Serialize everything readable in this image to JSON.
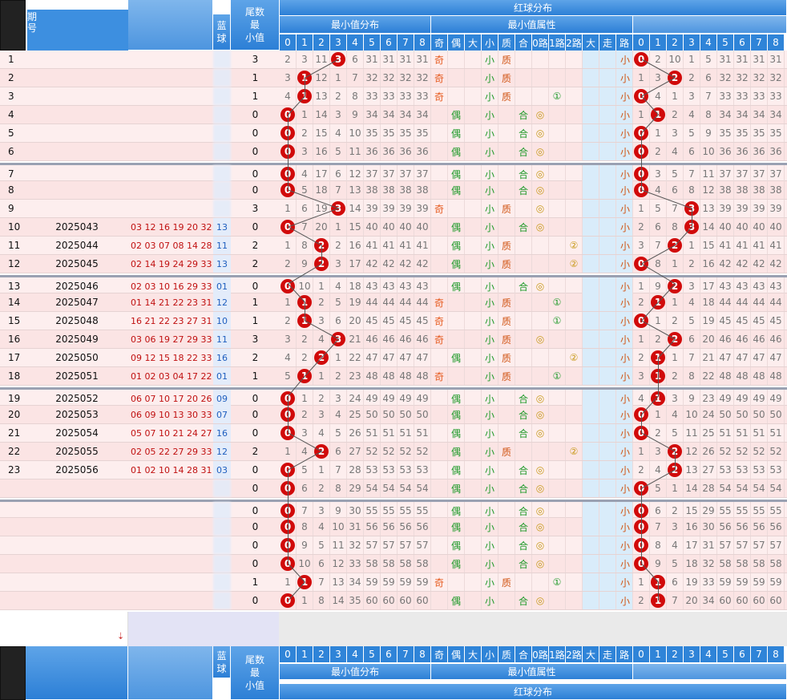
{
  "header": {
    "period_label": "期\n号",
    "blue_ball": "蓝\n球",
    "tail_min": "尾数\n最\n小值",
    "red_dist": "红球分布",
    "min_dist": "最小值分布",
    "min_attr": "最小值属性",
    "digits": [
      "0",
      "1",
      "2",
      "3",
      "4",
      "5",
      "6",
      "7",
      "8"
    ],
    "attrs": [
      "奇",
      "偶",
      "大",
      "小",
      "质",
      "合",
      "0路",
      "1路",
      "2路",
      "大",
      "走",
      "路"
    ]
  },
  "rows": [
    {
      "idx": "1",
      "period": "",
      "nums": "",
      "blue": "",
      "tail": "3",
      "min": [
        "2",
        "3",
        "11",
        "3",
        "6",
        "31",
        "31",
        "31",
        "31"
      ],
      "attr": {
        "odd": "奇",
        "even": "",
        "small": "小",
        "pc": "质",
        "r": ""
      },
      "r2": [
        "",
        "",
        "",
        "",
        "",
        "",
        "",
        "",
        ""
      ],
      "right": [
        "0",
        "2",
        "10",
        "1",
        "5",
        "31",
        "31",
        "31",
        "31"
      ]
    },
    {
      "idx": "2",
      "period": "",
      "nums": "",
      "blue": "",
      "tail": "1",
      "min": [
        "3",
        "1",
        "12",
        "1",
        "7",
        "32",
        "32",
        "32",
        "32"
      ],
      "attr": {
        "odd": "奇",
        "even": "",
        "small": "小",
        "pc": "质",
        "r": ""
      },
      "right": [
        "1",
        "3",
        "2",
        "2",
        "6",
        "32",
        "32",
        "32",
        "32"
      ]
    },
    {
      "idx": "3",
      "period": "",
      "nums": "",
      "blue": "",
      "tail": "1",
      "min": [
        "4",
        "1",
        "13",
        "2",
        "8",
        "33",
        "33",
        "33",
        "33"
      ],
      "attr": {
        "odd": "奇",
        "even": "",
        "small": "小",
        "pc": "质",
        "r": "①"
      },
      "right": [
        "0",
        "4",
        "1",
        "3",
        "7",
        "33",
        "33",
        "33",
        "33"
      ]
    },
    {
      "idx": "4",
      "period": "",
      "nums": "",
      "blue": "",
      "tail": "0",
      "min": [
        "0",
        "1",
        "14",
        "3",
        "9",
        "34",
        "34",
        "34",
        "34"
      ],
      "attr": {
        "odd": "",
        "even": "偶",
        "small": "小",
        "pc": "合",
        "r": "◎"
      },
      "right": [
        "1",
        "1",
        "2",
        "4",
        "8",
        "34",
        "34",
        "34",
        "34"
      ]
    },
    {
      "idx": "5",
      "period": "",
      "nums": "",
      "blue": "",
      "tail": "0",
      "min": [
        "0",
        "2",
        "15",
        "4",
        "10",
        "35",
        "35",
        "35",
        "35"
      ],
      "attr": {
        "odd": "",
        "even": "偶",
        "small": "小",
        "pc": "合",
        "r": "◎"
      },
      "right": [
        "0",
        "1",
        "3",
        "5",
        "9",
        "35",
        "35",
        "35",
        "35"
      ]
    },
    {
      "idx": "6",
      "period": "",
      "nums": "",
      "blue": "",
      "tail": "0",
      "min": [
        "0",
        "3",
        "16",
        "5",
        "11",
        "36",
        "36",
        "36",
        "36"
      ],
      "attr": {
        "odd": "",
        "even": "偶",
        "small": "小",
        "pc": "合",
        "r": "◎"
      },
      "right": [
        "0",
        "2",
        "4",
        "6",
        "10",
        "36",
        "36",
        "36",
        "36"
      ]
    },
    {
      "idx": "7",
      "period": "",
      "nums": "",
      "blue": "",
      "tail": "0",
      "min": [
        "0",
        "4",
        "17",
        "6",
        "12",
        "37",
        "37",
        "37",
        "37"
      ],
      "attr": {
        "odd": "",
        "even": "偶",
        "small": "小",
        "pc": "合",
        "r": "◎"
      },
      "right": [
        "0",
        "3",
        "5",
        "7",
        "11",
        "37",
        "37",
        "37",
        "37"
      ]
    },
    {
      "idx": "8",
      "period": "",
      "nums": "",
      "blue": "",
      "tail": "0",
      "min": [
        "0",
        "5",
        "18",
        "7",
        "13",
        "38",
        "38",
        "38",
        "38"
      ],
      "attr": {
        "odd": "",
        "even": "偶",
        "small": "小",
        "pc": "合",
        "r": "◎"
      },
      "right": [
        "0",
        "4",
        "6",
        "8",
        "12",
        "38",
        "38",
        "38",
        "38"
      ]
    },
    {
      "idx": "9",
      "period": "",
      "nums": "",
      "blue": "",
      "tail": "3",
      "min": [
        "1",
        "6",
        "19",
        "3",
        "14",
        "39",
        "39",
        "39",
        "39"
      ],
      "attr": {
        "odd": "奇",
        "even": "",
        "small": "小",
        "pc": "质",
        "r": "◎"
      },
      "right": [
        "1",
        "5",
        "7",
        "3",
        "13",
        "39",
        "39",
        "39",
        "39"
      ]
    },
    {
      "idx": "10",
      "period": "2025043",
      "nums": "03 12 16 19 20 32",
      "blue": "13",
      "tail": "0",
      "min": [
        "0",
        "7",
        "20",
        "1",
        "15",
        "40",
        "40",
        "40",
        "40"
      ],
      "attr": {
        "odd": "",
        "even": "偶",
        "small": "小",
        "pc": "合",
        "r": "◎"
      },
      "right": [
        "2",
        "6",
        "8",
        "3",
        "14",
        "40",
        "40",
        "40",
        "40"
      ]
    },
    {
      "idx": "11",
      "period": "2025044",
      "nums": "02 03 07 08 14 28",
      "blue": "11",
      "tail": "2",
      "min": [
        "1",
        "8",
        "2",
        "2",
        "16",
        "41",
        "41",
        "41",
        "41"
      ],
      "attr": {
        "odd": "",
        "even": "偶",
        "small": "小",
        "pc": "质",
        "r": "②"
      },
      "right": [
        "3",
        "7",
        "2",
        "1",
        "15",
        "41",
        "41",
        "41",
        "41"
      ]
    },
    {
      "idx": "12",
      "period": "2025045",
      "nums": "02 14 19 24 29 33",
      "blue": "13",
      "tail": "2",
      "min": [
        "2",
        "9",
        "2",
        "3",
        "17",
        "42",
        "42",
        "42",
        "42"
      ],
      "attr": {
        "odd": "",
        "even": "偶",
        "small": "小",
        "pc": "质",
        "r": "②"
      },
      "right": [
        "0",
        "8",
        "1",
        "2",
        "16",
        "42",
        "42",
        "42",
        "42"
      ]
    },
    {
      "idx": "13",
      "period": "2025046",
      "nums": "02 03 10 16 29 33",
      "blue": "01",
      "tail": "0",
      "min": [
        "0",
        "10",
        "1",
        "4",
        "18",
        "43",
        "43",
        "43",
        "43"
      ],
      "attr": {
        "odd": "",
        "even": "偶",
        "small": "小",
        "pc": "合",
        "r": "◎"
      },
      "right": [
        "1",
        "9",
        "2",
        "3",
        "17",
        "43",
        "43",
        "43",
        "43"
      ]
    },
    {
      "idx": "14",
      "period": "2025047",
      "nums": "01 14 21 22 23 31",
      "blue": "12",
      "tail": "1",
      "min": [
        "1",
        "1",
        "2",
        "5",
        "19",
        "44",
        "44",
        "44",
        "44"
      ],
      "attr": {
        "odd": "奇",
        "even": "",
        "small": "小",
        "pc": "质",
        "r": "①"
      },
      "right": [
        "2",
        "1",
        "1",
        "4",
        "18",
        "44",
        "44",
        "44",
        "44"
      ]
    },
    {
      "idx": "15",
      "period": "2025048",
      "nums": "16 21 22 23 27 31",
      "blue": "10",
      "tail": "1",
      "min": [
        "2",
        "1",
        "3",
        "6",
        "20",
        "45",
        "45",
        "45",
        "45"
      ],
      "attr": {
        "odd": "奇",
        "even": "",
        "small": "小",
        "pc": "质",
        "r": "①"
      },
      "right": [
        "0",
        "1",
        "2",
        "5",
        "19",
        "45",
        "45",
        "45",
        "45"
      ]
    },
    {
      "idx": "16",
      "period": "2025049",
      "nums": "03 06 19 27 29 33",
      "blue": "11",
      "tail": "3",
      "min": [
        "3",
        "2",
        "4",
        "3",
        "21",
        "46",
        "46",
        "46",
        "46"
      ],
      "attr": {
        "odd": "奇",
        "even": "",
        "small": "小",
        "pc": "质",
        "r": "◎"
      },
      "right": [
        "1",
        "2",
        "2",
        "6",
        "20",
        "46",
        "46",
        "46",
        "46"
      ]
    },
    {
      "idx": "17",
      "period": "2025050",
      "nums": "09 12 15 18 22 33",
      "blue": "16",
      "tail": "2",
      "min": [
        "4",
        "2",
        "2",
        "1",
        "22",
        "47",
        "47",
        "47",
        "47"
      ],
      "attr": {
        "odd": "",
        "even": "偶",
        "small": "小",
        "pc": "质",
        "r": "②"
      },
      "right": [
        "2",
        "1",
        "1",
        "7",
        "21",
        "47",
        "47",
        "47",
        "47"
      ]
    },
    {
      "idx": "18",
      "period": "2025051",
      "nums": "01 02 03 04 17 22",
      "blue": "01",
      "tail": "1",
      "min": [
        "5",
        "1",
        "1",
        "2",
        "23",
        "48",
        "48",
        "48",
        "48"
      ],
      "attr": {
        "odd": "奇",
        "even": "",
        "small": "小",
        "pc": "质",
        "r": "①"
      },
      "right": [
        "3",
        "1",
        "2",
        "8",
        "22",
        "48",
        "48",
        "48",
        "48"
      ]
    },
    {
      "idx": "19",
      "period": "2025052",
      "nums": "06 07 10 17 20 26",
      "blue": "09",
      "tail": "0",
      "min": [
        "0",
        "1",
        "2",
        "3",
        "24",
        "49",
        "49",
        "49",
        "49"
      ],
      "attr": {
        "odd": "",
        "even": "偶",
        "small": "小",
        "pc": "合",
        "r": "◎"
      },
      "right": [
        "4",
        "1",
        "3",
        "9",
        "23",
        "49",
        "49",
        "49",
        "49"
      ]
    },
    {
      "idx": "20",
      "period": "2025053",
      "nums": "06 09 10 13 30 33",
      "blue": "07",
      "tail": "0",
      "min": [
        "0",
        "2",
        "3",
        "4",
        "25",
        "50",
        "50",
        "50",
        "50"
      ],
      "attr": {
        "odd": "",
        "even": "偶",
        "small": "小",
        "pc": "合",
        "r": "◎"
      },
      "right": [
        "0",
        "1",
        "4",
        "10",
        "24",
        "50",
        "50",
        "50",
        "50"
      ]
    },
    {
      "idx": "21",
      "period": "2025054",
      "nums": "05 07 10 21 24 27",
      "blue": "16",
      "tail": "0",
      "min": [
        "0",
        "3",
        "4",
        "5",
        "26",
        "51",
        "51",
        "51",
        "51"
      ],
      "attr": {
        "odd": "",
        "even": "偶",
        "small": "小",
        "pc": "合",
        "r": "◎"
      },
      "right": [
        "0",
        "2",
        "5",
        "11",
        "25",
        "51",
        "51",
        "51",
        "51"
      ]
    },
    {
      "idx": "22",
      "period": "2025055",
      "nums": "02 05 22 27 29 33",
      "blue": "12",
      "tail": "2",
      "min": [
        "1",
        "4",
        "2",
        "6",
        "27",
        "52",
        "52",
        "52",
        "52"
      ],
      "attr": {
        "odd": "",
        "even": "偶",
        "small": "小",
        "pc": "质",
        "r": "②"
      },
      "right": [
        "1",
        "3",
        "2",
        "12",
        "26",
        "52",
        "52",
        "52",
        "52"
      ]
    },
    {
      "idx": "23",
      "period": "2025056",
      "nums": "01 02 10 14 28 31",
      "blue": "03",
      "tail": "0",
      "min": [
        "0",
        "5",
        "1",
        "7",
        "28",
        "53",
        "53",
        "53",
        "53"
      ],
      "attr": {
        "odd": "",
        "even": "偶",
        "small": "小",
        "pc": "合",
        "r": "◎"
      },
      "right": [
        "2",
        "4",
        "2",
        "13",
        "27",
        "53",
        "53",
        "53",
        "53"
      ]
    },
    {
      "idx": "",
      "period": "",
      "nums": "",
      "blue": "",
      "tail": "0",
      "min": [
        "0",
        "6",
        "2",
        "8",
        "29",
        "54",
        "54",
        "54",
        "54"
      ],
      "attr": {
        "odd": "",
        "even": "偶",
        "small": "小",
        "pc": "合",
        "r": "◎"
      },
      "right": [
        "0",
        "5",
        "1",
        "14",
        "28",
        "54",
        "54",
        "54",
        "54"
      ]
    },
    {
      "idx": "",
      "period": "",
      "nums": "",
      "blue": "",
      "tail": "0",
      "min": [
        "0",
        "7",
        "3",
        "9",
        "30",
        "55",
        "55",
        "55",
        "55"
      ],
      "attr": {
        "odd": "",
        "even": "偶",
        "small": "小",
        "pc": "合",
        "r": "◎"
      },
      "right": [
        "0",
        "6",
        "2",
        "15",
        "29",
        "55",
        "55",
        "55",
        "55"
      ]
    },
    {
      "idx": "",
      "period": "",
      "nums": "",
      "blue": "",
      "tail": "0",
      "min": [
        "0",
        "8",
        "4",
        "10",
        "31",
        "56",
        "56",
        "56",
        "56"
      ],
      "attr": {
        "odd": "",
        "even": "偶",
        "small": "小",
        "pc": "合",
        "r": "◎"
      },
      "right": [
        "0",
        "7",
        "3",
        "16",
        "30",
        "56",
        "56",
        "56",
        "56"
      ]
    },
    {
      "idx": "",
      "period": "",
      "nums": "",
      "blue": "",
      "tail": "0",
      "min": [
        "0",
        "9",
        "5",
        "11",
        "32",
        "57",
        "57",
        "57",
        "57"
      ],
      "attr": {
        "odd": "",
        "even": "偶",
        "small": "小",
        "pc": "合",
        "r": "◎"
      },
      "right": [
        "0",
        "8",
        "4",
        "17",
        "31",
        "57",
        "57",
        "57",
        "57"
      ]
    },
    {
      "idx": "",
      "period": "",
      "nums": "",
      "blue": "",
      "tail": "0",
      "min": [
        "0",
        "10",
        "6",
        "12",
        "33",
        "58",
        "58",
        "58",
        "58"
      ],
      "attr": {
        "odd": "",
        "even": "偶",
        "small": "小",
        "pc": "合",
        "r": "◎"
      },
      "right": [
        "0",
        "9",
        "5",
        "18",
        "32",
        "58",
        "58",
        "58",
        "58"
      ]
    },
    {
      "idx": "",
      "period": "",
      "nums": "",
      "blue": "",
      "tail": "1",
      "min": [
        "1",
        "1",
        "7",
        "13",
        "34",
        "59",
        "59",
        "59",
        "59"
      ],
      "attr": {
        "odd": "奇",
        "even": "",
        "small": "小",
        "pc": "质",
        "r": "①"
      },
      "right": [
        "1",
        "1",
        "6",
        "19",
        "33",
        "59",
        "59",
        "59",
        "59"
      ]
    },
    {
      "idx": "",
      "period": "",
      "nums": "",
      "blue": "",
      "tail": "0",
      "min": [
        "0",
        "1",
        "8",
        "14",
        "35",
        "60",
        "60",
        "60",
        "60"
      ],
      "attr": {
        "odd": "",
        "even": "偶",
        "small": "小",
        "pc": "合",
        "r": "◎"
      },
      "right": [
        "2",
        "1",
        "7",
        "20",
        "34",
        "60",
        "60",
        "60",
        "60"
      ]
    }
  ],
  "ball_pos": [
    3,
    1,
    1,
    0,
    0,
    0,
    0,
    0,
    3,
    0,
    2,
    2,
    0,
    1,
    1,
    3,
    2,
    1,
    0,
    0,
    0,
    2,
    0,
    0,
    0,
    0,
    0,
    0,
    1,
    0
  ],
  "right_ball_pos": [
    0,
    2,
    0,
    1,
    0,
    0,
    0,
    0,
    3,
    3,
    2,
    0,
    2,
    1,
    0,
    2,
    1,
    1,
    1,
    0,
    0,
    2,
    2,
    0,
    0,
    0,
    0,
    0,
    1,
    1
  ],
  "footer_arrow": "⇣",
  "colors": {
    "ball": "#d10a0a",
    "header": "#2f84d8",
    "band": "#d9ecfa"
  }
}
